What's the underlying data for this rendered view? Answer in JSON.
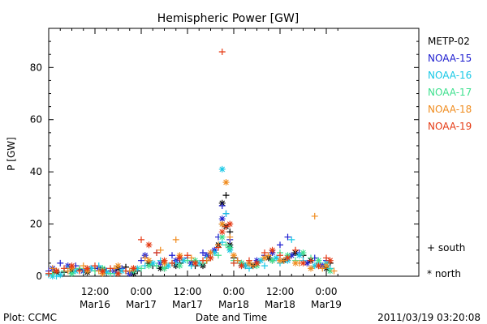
{
  "chart_data": {
    "type": "scatter",
    "title": "Hemispheric Power [GW]",
    "xlabel": "Date and Time",
    "ylabel": "P [GW]",
    "x_unit": "hours",
    "xlim": [
      0,
      96
    ],
    "ylim": [
      0,
      95
    ],
    "yticks": [
      0,
      20,
      40,
      60,
      80
    ],
    "xticks": [
      {
        "x": 12,
        "line1": "12:00",
        "line2": "Mar16"
      },
      {
        "x": 24,
        "line1": "0:00",
        "line2": "Mar17"
      },
      {
        "x": 36,
        "line1": "12:00",
        "line2": "Mar17"
      },
      {
        "x": 48,
        "line1": "0:00",
        "line2": "Mar18"
      },
      {
        "x": 60,
        "line1": "12:00",
        "line2": "Mar18"
      },
      {
        "x": 72,
        "line1": "0:00",
        "line2": "Mar19"
      }
    ],
    "grid": false,
    "legend_position": "right",
    "marker_legend": [
      {
        "symbol": "+",
        "label": "south"
      },
      {
        "symbol": "*",
        "label": "north"
      }
    ],
    "series": [
      {
        "name": "METP-02",
        "color": "#000000",
        "south": [
          [
            1,
            2
          ],
          [
            4,
            1.5
          ],
          [
            8,
            2.5
          ],
          [
            12,
            3
          ],
          [
            16,
            2
          ],
          [
            20,
            3.5
          ],
          [
            23,
            2
          ],
          [
            27,
            4
          ],
          [
            30,
            3
          ],
          [
            34,
            5
          ],
          [
            38,
            4
          ],
          [
            41,
            6
          ],
          [
            45,
            20
          ],
          [
            46,
            31
          ],
          [
            47,
            17
          ],
          [
            48,
            7
          ],
          [
            51,
            4
          ],
          [
            54,
            5
          ],
          [
            58,
            6
          ],
          [
            62,
            7
          ],
          [
            66,
            8
          ],
          [
            70,
            4
          ],
          [
            73,
            5
          ]
        ],
        "north": [
          [
            2,
            1.5
          ],
          [
            6,
            2
          ],
          [
            10,
            1.5
          ],
          [
            14,
            2.5
          ],
          [
            18,
            3
          ],
          [
            22,
            1
          ],
          [
            26,
            5
          ],
          [
            29,
            3
          ],
          [
            33,
            4
          ],
          [
            37,
            5
          ],
          [
            40,
            4
          ],
          [
            44,
            12
          ],
          [
            45,
            28
          ],
          [
            46,
            19
          ],
          [
            47,
            12
          ],
          [
            50,
            5
          ],
          [
            53,
            4
          ],
          [
            57,
            7
          ],
          [
            61,
            6
          ],
          [
            64,
            9
          ],
          [
            68,
            6
          ],
          [
            72,
            3
          ]
        ]
      },
      {
        "name": "NOAA-15",
        "color": "#1c1ccf",
        "south": [
          [
            0,
            2
          ],
          [
            3,
            5
          ],
          [
            7,
            4
          ],
          [
            11,
            3
          ],
          [
            15,
            2
          ],
          [
            19,
            3
          ],
          [
            24,
            6
          ],
          [
            28,
            9
          ],
          [
            32,
            8
          ],
          [
            36,
            7
          ],
          [
            40,
            9
          ],
          [
            44,
            15
          ],
          [
            45,
            27
          ],
          [
            46,
            24
          ],
          [
            47,
            14
          ],
          [
            49,
            6
          ],
          [
            52,
            5
          ],
          [
            56,
            8
          ],
          [
            60,
            12
          ],
          [
            62,
            15
          ],
          [
            65,
            9
          ],
          [
            69,
            7
          ],
          [
            72,
            6
          ]
        ],
        "north": [
          [
            1,
            3
          ],
          [
            5,
            4
          ],
          [
            9,
            2
          ],
          [
            13,
            3
          ],
          [
            17,
            2
          ],
          [
            21,
            1
          ],
          [
            25,
            8
          ],
          [
            29,
            5
          ],
          [
            33,
            6
          ],
          [
            37,
            5
          ],
          [
            41,
            8
          ],
          [
            43,
            10
          ],
          [
            45,
            22
          ],
          [
            47,
            11
          ],
          [
            50,
            4
          ],
          [
            54,
            6
          ],
          [
            58,
            9
          ],
          [
            63,
            8
          ],
          [
            67,
            5
          ],
          [
            71,
            4
          ]
        ]
      },
      {
        "name": "NOAA-16",
        "color": "#17c8e6",
        "south": [
          [
            0,
            0.5
          ],
          [
            2,
            0
          ],
          [
            5,
            3
          ],
          [
            9,
            2
          ],
          [
            13,
            4
          ],
          [
            17,
            1
          ],
          [
            21,
            2
          ],
          [
            25,
            4
          ],
          [
            29,
            6
          ],
          [
            33,
            5
          ],
          [
            37,
            4
          ],
          [
            41,
            7
          ],
          [
            45,
            13
          ],
          [
            46,
            24
          ],
          [
            48,
            5
          ],
          [
            52,
            3
          ],
          [
            56,
            4
          ],
          [
            60,
            5
          ],
          [
            63,
            14
          ],
          [
            66,
            6
          ],
          [
            70,
            5
          ],
          [
            73,
            3
          ]
        ],
        "north": [
          [
            1,
            0
          ],
          [
            3,
            0.5
          ],
          [
            7,
            2
          ],
          [
            11,
            3
          ],
          [
            15,
            1.5
          ],
          [
            19,
            2
          ],
          [
            23,
            3
          ],
          [
            27,
            5
          ],
          [
            31,
            4
          ],
          [
            35,
            6
          ],
          [
            39,
            5
          ],
          [
            43,
            9
          ],
          [
            45,
            41
          ],
          [
            47,
            10
          ],
          [
            51,
            4
          ],
          [
            55,
            6
          ],
          [
            59,
            7
          ],
          [
            62,
            6
          ],
          [
            65,
            8
          ],
          [
            69,
            4
          ],
          [
            72,
            5
          ]
        ]
      },
      {
        "name": "NOAA-17",
        "color": "#3ee08e",
        "south": [
          [
            1,
            1
          ],
          [
            4,
            2
          ],
          [
            8,
            3
          ],
          [
            12,
            2
          ],
          [
            16,
            1
          ],
          [
            20,
            2
          ],
          [
            24,
            3
          ],
          [
            28,
            4
          ],
          [
            32,
            5
          ],
          [
            36,
            6
          ],
          [
            40,
            5
          ],
          [
            44,
            8
          ],
          [
            46,
            12
          ],
          [
            48,
            6
          ],
          [
            52,
            5
          ],
          [
            56,
            7
          ],
          [
            60,
            9
          ],
          [
            64,
            6
          ],
          [
            68,
            7
          ],
          [
            72,
            4
          ]
        ],
        "north": [
          [
            2,
            2
          ],
          [
            6,
            1
          ],
          [
            10,
            2
          ],
          [
            14,
            3
          ],
          [
            18,
            1
          ],
          [
            22,
            2
          ],
          [
            26,
            4
          ],
          [
            30,
            3
          ],
          [
            34,
            4
          ],
          [
            38,
            6
          ],
          [
            42,
            7
          ],
          [
            45,
            15
          ],
          [
            47,
            11
          ],
          [
            50,
            5
          ],
          [
            54,
            4
          ],
          [
            58,
            6
          ],
          [
            62,
            8
          ],
          [
            66,
            9
          ],
          [
            70,
            6
          ],
          [
            73,
            2
          ]
        ]
      },
      {
        "name": "NOAA-18",
        "color": "#f08c1e",
        "south": [
          [
            1,
            3
          ],
          [
            5,
            2
          ],
          [
            9,
            4
          ],
          [
            13,
            2
          ],
          [
            17,
            3
          ],
          [
            21,
            2
          ],
          [
            25,
            7
          ],
          [
            29,
            10
          ],
          [
            33,
            14
          ],
          [
            37,
            7
          ],
          [
            41,
            6
          ],
          [
            44,
            12
          ],
          [
            47,
            15
          ],
          [
            49,
            6
          ],
          [
            53,
            4
          ],
          [
            57,
            8
          ],
          [
            61,
            6
          ],
          [
            65,
            5
          ],
          [
            69,
            23
          ],
          [
            71,
            3
          ],
          [
            74,
            2
          ]
        ],
        "north": [
          [
            2,
            2
          ],
          [
            6,
            3
          ],
          [
            10,
            2
          ],
          [
            14,
            1
          ],
          [
            18,
            4
          ],
          [
            22,
            3
          ],
          [
            26,
            6
          ],
          [
            30,
            5
          ],
          [
            34,
            8
          ],
          [
            38,
            5
          ],
          [
            42,
            9
          ],
          [
            45,
            20
          ],
          [
            46,
            36
          ],
          [
            48,
            8
          ],
          [
            52,
            5
          ],
          [
            56,
            7
          ],
          [
            60,
            6
          ],
          [
            64,
            5
          ],
          [
            68,
            3
          ],
          [
            72,
            4
          ]
        ]
      },
      {
        "name": "NOAA-19",
        "color": "#e53a14",
        "south": [
          [
            0,
            1
          ],
          [
            4,
            3
          ],
          [
            8,
            2
          ],
          [
            12,
            4
          ],
          [
            16,
            3
          ],
          [
            20,
            2
          ],
          [
            24,
            14
          ],
          [
            28,
            9
          ],
          [
            32,
            5
          ],
          [
            36,
            8
          ],
          [
            40,
            6
          ],
          [
            44,
            11
          ],
          [
            45,
            86
          ],
          [
            46,
            19
          ],
          [
            48,
            5
          ],
          [
            52,
            6
          ],
          [
            56,
            9
          ],
          [
            60,
            8
          ],
          [
            64,
            10
          ],
          [
            68,
            6
          ],
          [
            72,
            7
          ]
        ],
        "north": [
          [
            2,
            2
          ],
          [
            6,
            4
          ],
          [
            10,
            3
          ],
          [
            14,
            2
          ],
          [
            18,
            1
          ],
          [
            22,
            3
          ],
          [
            26,
            12
          ],
          [
            30,
            6
          ],
          [
            34,
            7
          ],
          [
            38,
            5
          ],
          [
            42,
            7
          ],
          [
            45,
            17
          ],
          [
            47,
            20
          ],
          [
            50,
            4
          ],
          [
            54,
            5
          ],
          [
            58,
            10
          ],
          [
            62,
            7
          ],
          [
            66,
            5
          ],
          [
            70,
            4
          ],
          [
            73,
            6
          ]
        ]
      }
    ]
  },
  "footer": {
    "plot_credit": "Plot: CCMC",
    "timestamp": "2011/03/19 03:20:08"
  }
}
